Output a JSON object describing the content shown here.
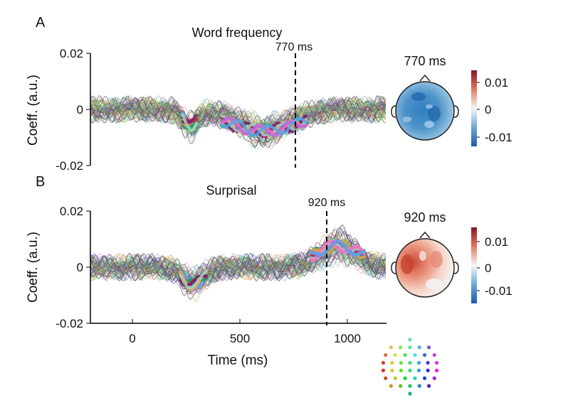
{
  "figure": {
    "panels": [
      {
        "letter": "A",
        "title": "Word frequency",
        "ylabel": "Coeff. (a.u.)",
        "yticks": [
          "0.02",
          "0",
          "-0.02"
        ],
        "marker_label": "770 ms",
        "topo_label": "770 ms",
        "colorbar_ticks": [
          "0.01",
          "0",
          "-0.01"
        ]
      },
      {
        "letter": "B",
        "title": "Surprisal",
        "ylabel": "Coeff. (a.u.)",
        "yticks": [
          "0.02",
          "0",
          "-0.02"
        ],
        "marker_label": "920 ms",
        "topo_label": "920 ms",
        "colorbar_ticks": [
          "0.01",
          "0",
          "-0.01"
        ]
      }
    ],
    "xlabel": "Time (ms)",
    "xticks": [
      "0",
      "500",
      "1000"
    ]
  },
  "chart_data": [
    {
      "type": "line",
      "title": "Word frequency",
      "ylabel": "Coeff. (a.u.)",
      "xlim": [
        -200,
        1180
      ],
      "ylim": [
        -0.02,
        0.02
      ],
      "marker_time": 770,
      "channels": 64,
      "significant_clusters": [
        {
          "t_start": 230,
          "t_end": 300,
          "coefficient": -0.007
        },
        {
          "t_start": 410,
          "t_end": 810,
          "coefficient": -0.009
        }
      ],
      "topomap_colorbar": [
        -0.015,
        0.015
      ]
    },
    {
      "type": "line",
      "title": "Surprisal",
      "ylabel": "Coeff. (a.u.)",
      "xlim": [
        -200,
        1180
      ],
      "ylim": [
        -0.02,
        0.02
      ],
      "marker_time": 920,
      "channels": 64,
      "significant_clusters": [
        {
          "t_start": 220,
          "t_end": 340,
          "coefficient": -0.007
        },
        {
          "t_start": 830,
          "t_end": 1080,
          "coefficient": 0.009
        }
      ],
      "topomap_colorbar": [
        -0.015,
        0.015
      ]
    }
  ]
}
